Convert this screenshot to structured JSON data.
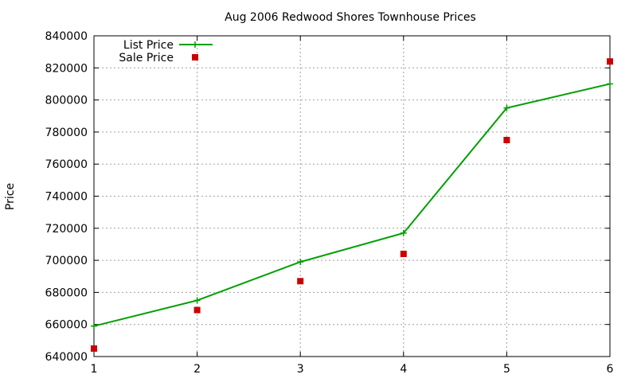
{
  "chart_data": {
    "type": "line",
    "title": "Aug 2006 Redwood Shores Townhouse Prices",
    "xlabel": "",
    "ylabel": "Price",
    "x": [
      1,
      2,
      3,
      4,
      5,
      6
    ],
    "xlim": [
      1,
      6
    ],
    "ylim": [
      640000,
      840000
    ],
    "xticks": [
      1,
      2,
      3,
      4,
      5,
      6
    ],
    "yticks": [
      640000,
      660000,
      680000,
      700000,
      720000,
      740000,
      760000,
      780000,
      800000,
      820000,
      840000
    ],
    "grid": true,
    "legend_position": "top-left",
    "series": [
      {
        "name": "List Price",
        "style": "line-points",
        "marker": "plus",
        "color": "#00a000",
        "values": [
          659000,
          675000,
          699000,
          717000,
          795000,
          810000
        ]
      },
      {
        "name": "Sale Price",
        "style": "points",
        "marker": "square",
        "color": "#cc0000",
        "values": [
          645000,
          669000,
          687000,
          704000,
          775000,
          824000
        ]
      }
    ]
  }
}
